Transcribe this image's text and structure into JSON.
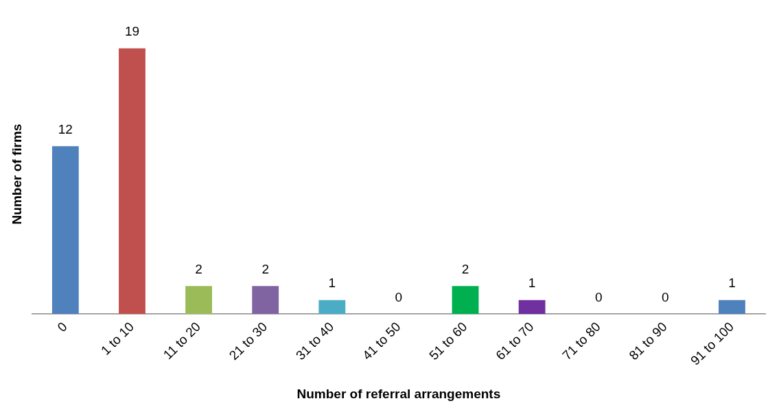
{
  "chart_data": {
    "type": "bar",
    "xlabel": "Number of referral arrangements",
    "ylabel": "Number of firms",
    "categories": [
      "0",
      "1 to 10",
      "11 to 20",
      "21 to 30",
      "31 to 40",
      "41 to 50",
      "51 to 60",
      "61 to 70",
      "71 to 80",
      "81 to 90",
      "91 to 100"
    ],
    "values": [
      12,
      19,
      2,
      2,
      1,
      0,
      2,
      1,
      0,
      0,
      1
    ],
    "colors": [
      "#4f81bd",
      "#c0504d",
      "#9bbb59",
      "#8064a2",
      "#4bacc6",
      "#f79646",
      "#00b050",
      "#7030a0",
      "#4f81bd",
      "#c0504d",
      "#4f81bd"
    ],
    "data_labels": true,
    "grid": false,
    "legend": false
  }
}
